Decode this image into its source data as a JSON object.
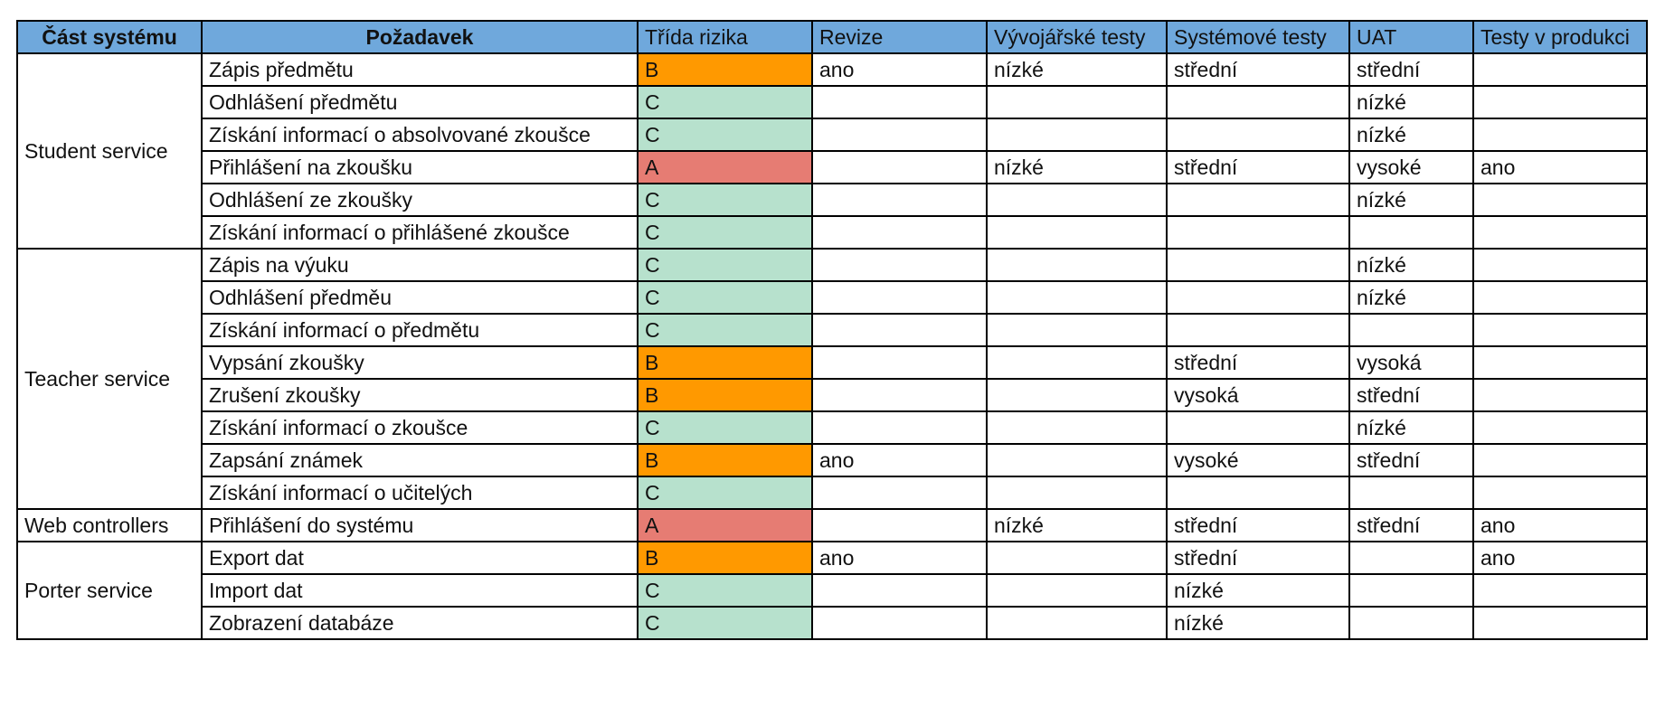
{
  "colors": {
    "header_bg": "#6fa8dc",
    "risk_A": "#e67c73",
    "risk_B": "#ff9900",
    "risk_C": "#b7e1cd"
  },
  "table": {
    "headers": [
      "Část systému",
      "Požadavek",
      "Třída rizika",
      "Revize",
      "Vývojářské testy",
      "Systémové testy",
      "UAT",
      "Testy v produkci"
    ],
    "groups": [
      {
        "part": "Student service",
        "rows": [
          {
            "req": "Zápis předmětu",
            "risk": "B",
            "revize": "ano",
            "dev": "nízké",
            "sys": "střední",
            "uat": "střední",
            "prod": ""
          },
          {
            "req": "Odhlášení předmětu",
            "risk": "C",
            "revize": "",
            "dev": "",
            "sys": "",
            "uat": "nízké",
            "prod": ""
          },
          {
            "req": "Získání informací o absolvované zkoušce",
            "risk": "C",
            "revize": "",
            "dev": "",
            "sys": "",
            "uat": "nízké",
            "prod": ""
          },
          {
            "req": "Přihlášení na zkoušku",
            "risk": "A",
            "revize": "",
            "dev": "nízké",
            "sys": "střední",
            "uat": "vysoké",
            "prod": "ano"
          },
          {
            "req": "Odhlášení ze zkoušky",
            "risk": "C",
            "revize": "",
            "dev": "",
            "sys": "",
            "uat": "nízké",
            "prod": ""
          },
          {
            "req": "Získání informací o přihlášené zkoušce",
            "risk": "C",
            "revize": "",
            "dev": "",
            "sys": "",
            "uat": "",
            "prod": ""
          }
        ]
      },
      {
        "part": "Teacher service",
        "rows": [
          {
            "req": "Zápis na výuku",
            "risk": "C",
            "revize": "",
            "dev": "",
            "sys": "",
            "uat": "nízké",
            "prod": ""
          },
          {
            "req": "Odhlášení předměu",
            "risk": "C",
            "revize": "",
            "dev": "",
            "sys": "",
            "uat": "nízké",
            "prod": ""
          },
          {
            "req": "Získání informací o předmětu",
            "risk": "C",
            "revize": "",
            "dev": "",
            "sys": "",
            "uat": "",
            "prod": ""
          },
          {
            "req": "Vypsání zkoušky",
            "risk": "B",
            "revize": "",
            "dev": "",
            "sys": "střední",
            "uat": "vysoká",
            "prod": ""
          },
          {
            "req": "Zrušení zkoušky",
            "risk": "B",
            "revize": "",
            "dev": "",
            "sys": "vysoká",
            "uat": "střední",
            "prod": ""
          },
          {
            "req": "Získání informací o zkoušce",
            "risk": "C",
            "revize": "",
            "dev": "",
            "sys": "",
            "uat": "nízké",
            "prod": ""
          },
          {
            "req": "Zapsání známek",
            "risk": "B",
            "revize": "ano",
            "dev": "",
            "sys": "vysoké",
            "uat": "střední",
            "prod": ""
          },
          {
            "req": "Získání informací o učitelých",
            "risk": "C",
            "revize": "",
            "dev": "",
            "sys": "",
            "uat": "",
            "prod": ""
          }
        ]
      },
      {
        "part": "Web controllers",
        "rows": [
          {
            "req": "Přihlášení do systému",
            "risk": "A",
            "revize": "",
            "dev": "nízké",
            "sys": "střední",
            "uat": "střední",
            "prod": "ano"
          }
        ]
      },
      {
        "part": "Porter service",
        "rows": [
          {
            "req": "Export dat",
            "risk": "B",
            "revize": "ano",
            "dev": "",
            "sys": "střední",
            "uat": "",
            "prod": "ano"
          },
          {
            "req": "Import dat",
            "risk": "C",
            "revize": "",
            "dev": "",
            "sys": "nízké",
            "uat": "",
            "prod": ""
          },
          {
            "req": "Zobrazení databáze",
            "risk": "C",
            "revize": "",
            "dev": "",
            "sys": "nízké",
            "uat": "",
            "prod": ""
          }
        ]
      }
    ]
  }
}
